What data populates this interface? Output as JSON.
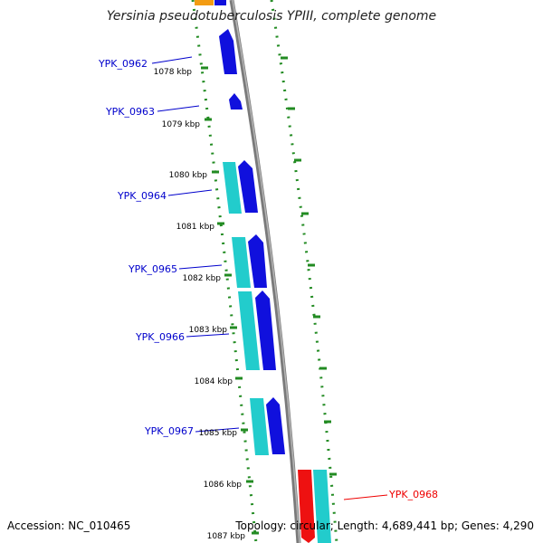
{
  "title": "Yersinia pseudotuberculosis YPIII, complete genome",
  "footer": {
    "accession": "Accession: NC_010465",
    "summary": "Topology: circular; Length: 4,689,441 bp; Genes: 4,290"
  },
  "colors": {
    "label_blue": "#0000cc",
    "label_red": "#ee0000",
    "gene_blue": "#1010dd",
    "gene_cyan": "#22cccc",
    "gene_red": "#ee1111",
    "gene_orange": "#f39c12",
    "ticks_green": "#228b22",
    "backbone": "#7a7a7a"
  },
  "tick_labels": [
    "1078 kbp",
    "1079 kbp",
    "1080 kbp",
    "1081 kbp",
    "1082 kbp",
    "1083 kbp",
    "1084 kbp",
    "1085 kbp",
    "1086 kbp",
    "1087 kbp"
  ],
  "gene_labels": [
    {
      "name": "YPK_0962",
      "color": "blue"
    },
    {
      "name": "YPK_0963",
      "color": "blue"
    },
    {
      "name": "YPK_0964",
      "color": "blue"
    },
    {
      "name": "YPK_0965",
      "color": "blue"
    },
    {
      "name": "YPK_0966",
      "color": "blue"
    },
    {
      "name": "YPK_0967",
      "color": "blue"
    },
    {
      "name": "YPK_0968",
      "color": "red"
    }
  ]
}
